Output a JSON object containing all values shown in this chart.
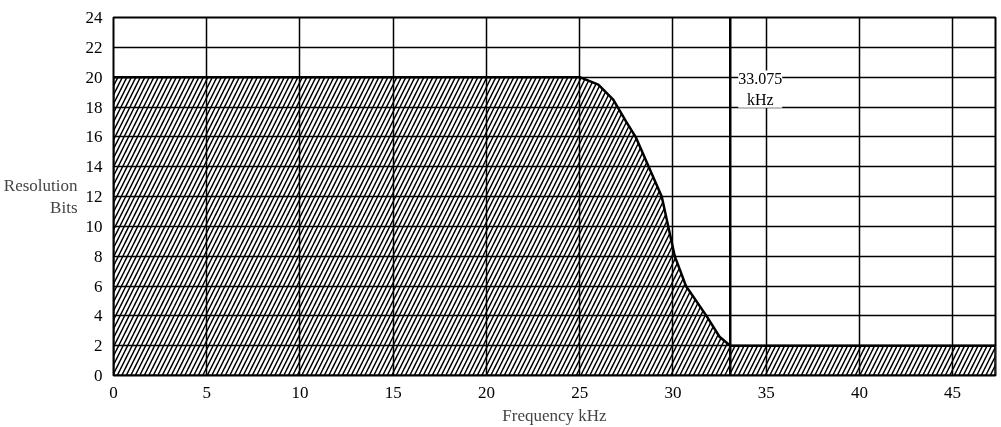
{
  "chart_data": {
    "type": "area",
    "xlabel": "Frequency kHz",
    "ylabel": "Resolution Bits",
    "x": [
      0,
      25,
      26,
      26.8,
      27.5,
      28,
      29.4,
      30.1,
      30.7,
      31.8,
      32.5,
      33.075,
      47.3
    ],
    "series": [
      {
        "color": "#000000",
        "values": [
          20,
          20,
          19.5,
          18.5,
          17,
          16,
          12,
          8,
          6,
          4,
          2.6,
          2,
          2
        ]
      }
    ],
    "xlim": [
      0,
      47.3
    ],
    "xticks": [
      0,
      5,
      10,
      15,
      20,
      25,
      30,
      35,
      40,
      45
    ],
    "ylim": [
      0,
      24
    ],
    "yticks": [
      0,
      2,
      4,
      6,
      8,
      10,
      12,
      14,
      16,
      18,
      20,
      22,
      24
    ],
    "ref_lines": [
      {
        "axis": "x",
        "value": 33.075,
        "label": "33.075 kHz"
      }
    ],
    "grid": true
  }
}
